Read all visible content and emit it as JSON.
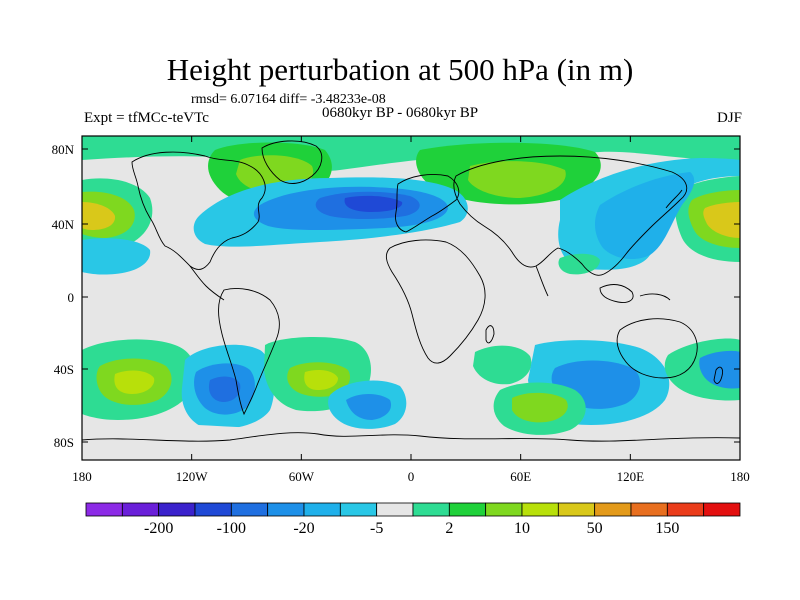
{
  "title": "Height perturbation at 500 hPa (in m)",
  "stats_text": "rmsd= 6.07164 diff= -3.48233e-08",
  "experiment_text": "Expt = tfMCc-teVTc",
  "period_text": "0680kyr BP - 0680kyr BP",
  "season_text": "DJF",
  "map": {
    "lat_ticks": [
      "80N",
      "40N",
      "0",
      "40S",
      "80S"
    ],
    "lon_ticks": [
      "180",
      "120W",
      "60W",
      "0",
      "60E",
      "120E",
      "180"
    ],
    "land_fill": "none",
    "ocean_fill": "none"
  },
  "colorbar": {
    "colors": [
      "#8c2ae6",
      "#6a1fd9",
      "#3b22cc",
      "#1f49d6",
      "#1f6fe0",
      "#1e90e8",
      "#1fb0ea",
      "#29c7e6",
      "#e6e6e6",
      "#2edc93",
      "#1fd13a",
      "#7fd81f",
      "#b8e00a",
      "#d9c81a",
      "#e39a1a",
      "#e86f1f",
      "#ea3c1a",
      "#e30f0f"
    ],
    "labels": [
      "-200",
      "-100",
      "-20",
      "-5",
      "2",
      "10",
      "50",
      "150"
    ]
  },
  "palette": {
    "neutral": "#e6e6e6",
    "neg_light": "#29c7e6",
    "neg_mid": "#1fb0ea",
    "neg_strong": "#1e90e8",
    "neg_deep": "#1f6fe0",
    "neg_deepest": "#1f49d6",
    "pos_light": "#2edc93",
    "pos_mid": "#1fd13a",
    "pos_strong": "#7fd81f",
    "pos_deep": "#b8e00a",
    "pos_deepest": "#d9c81a"
  }
}
